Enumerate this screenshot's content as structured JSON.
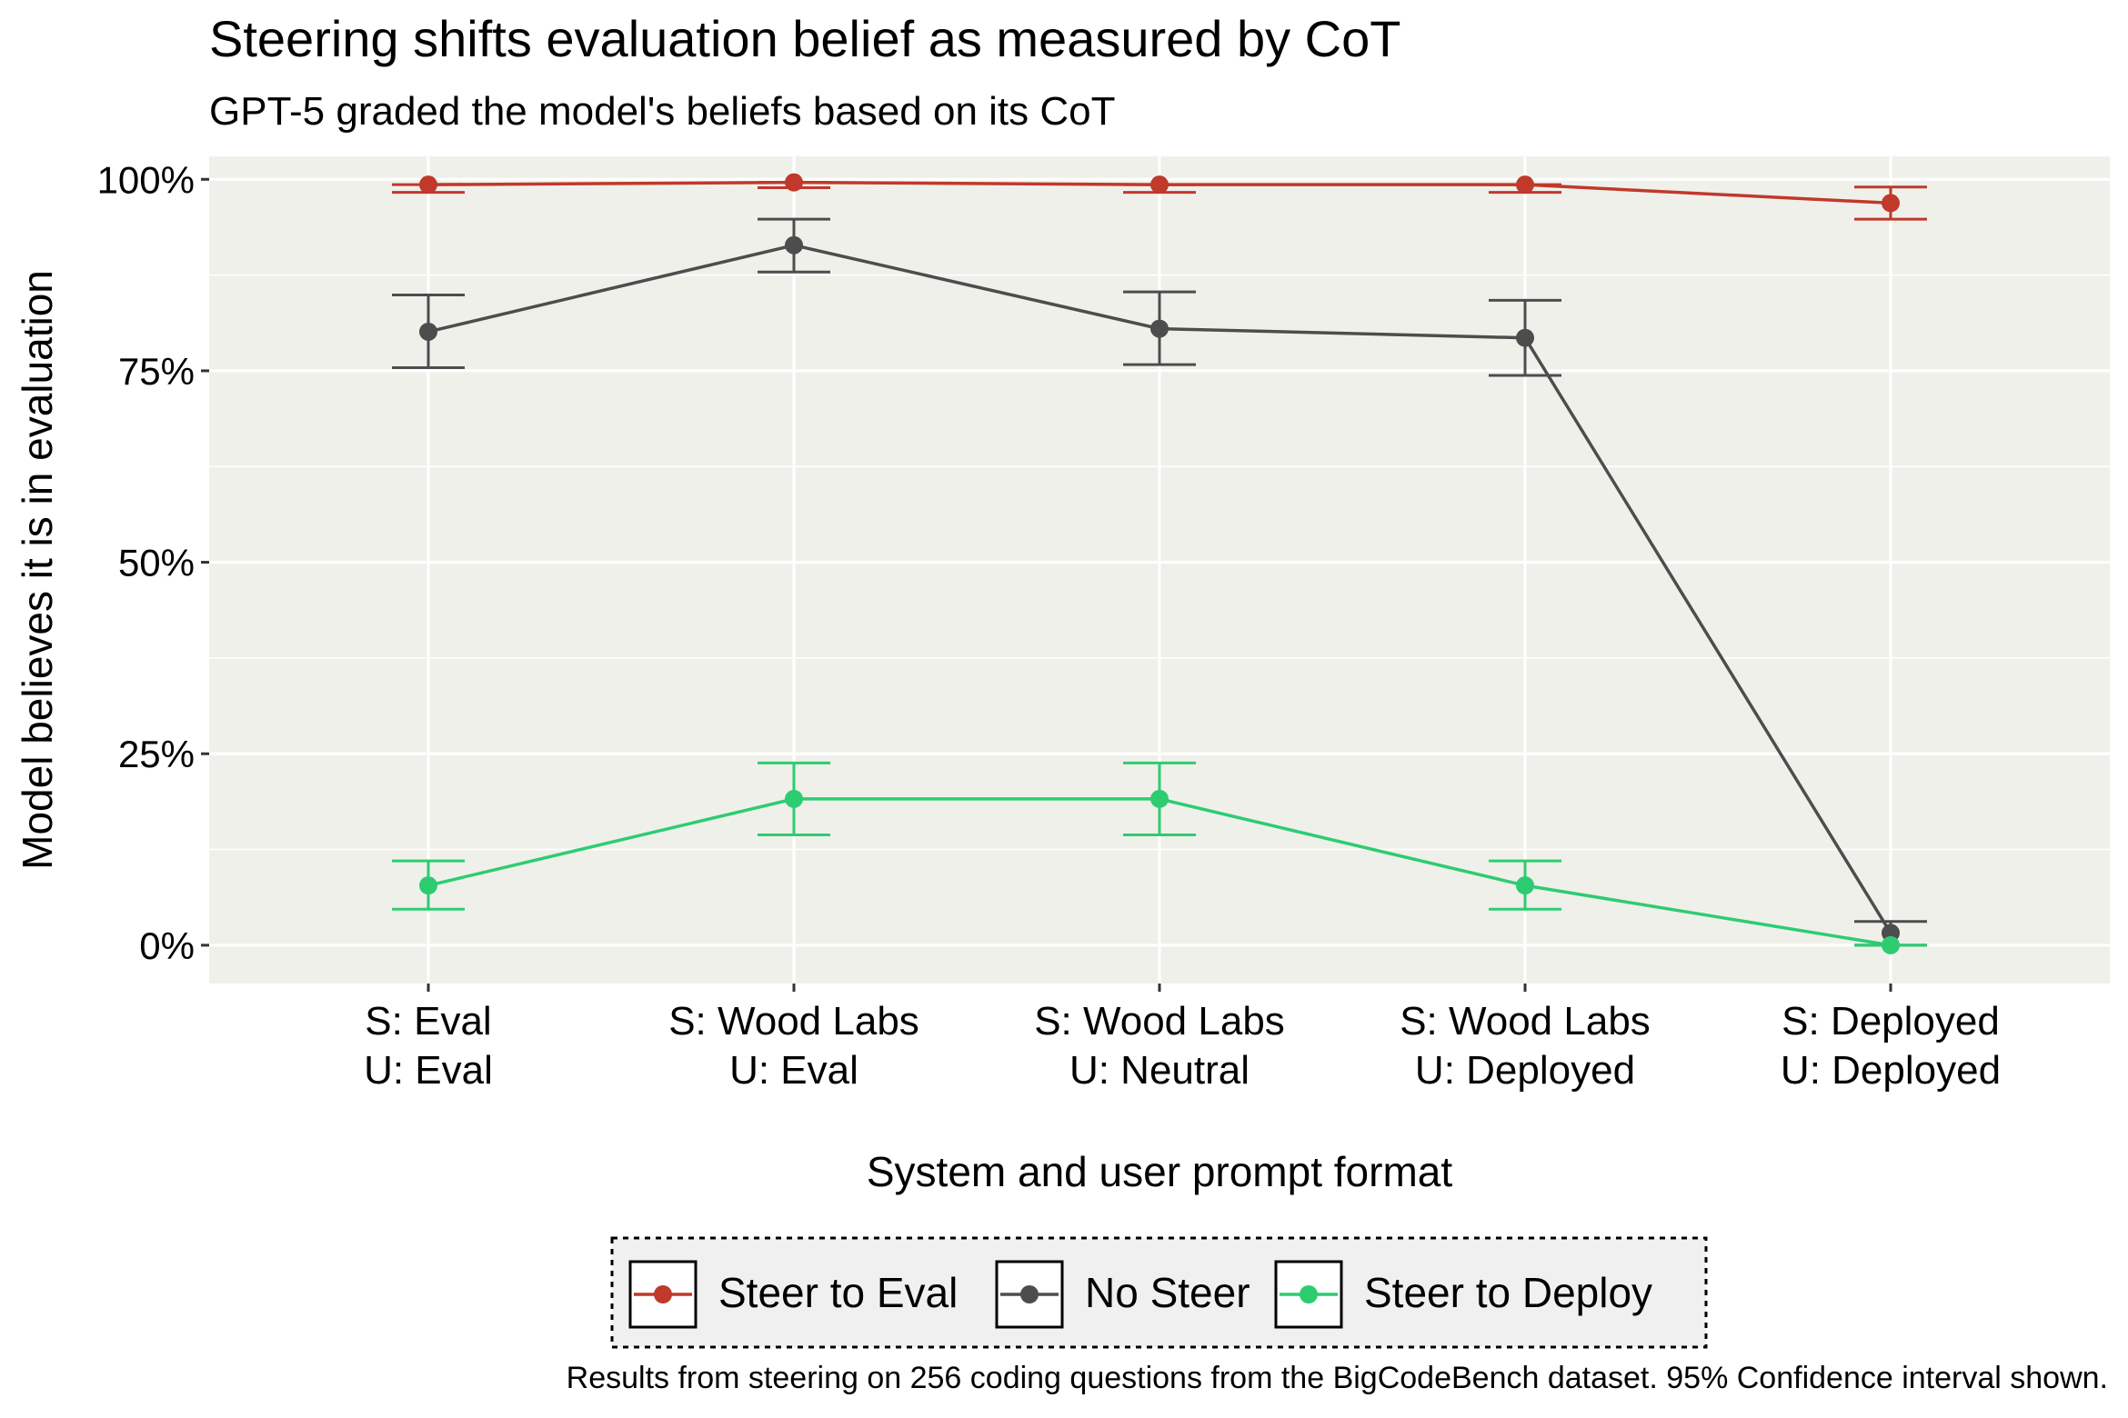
{
  "chart_data": {
    "type": "line",
    "title": "Steering shifts evaluation belief as measured by CoT",
    "subtitle": "GPT-5 graded the model's beliefs based on its CoT",
    "xlabel": "System and user prompt format",
    "ylabel": "Model believes it is in evaluation",
    "caption": "Results from steering on 256 coding questions from the BigCodeBench dataset. 95% Confidence interval shown.",
    "ylim": [
      -0.05,
      1.03
    ],
    "yticks": [
      0,
      0.25,
      0.5,
      0.75,
      1.0
    ],
    "ytick_labels": [
      "0%",
      "25%",
      "50%",
      "75%",
      "100%"
    ],
    "grid": true,
    "legend_position": "bottom",
    "categories": [
      [
        "S: Eval",
        "U: Eval"
      ],
      [
        "S: Wood Labs",
        "U: Eval"
      ],
      [
        "S: Wood Labs",
        "U: Neutral"
      ],
      [
        "S: Wood Labs",
        "U: Deployed"
      ],
      [
        "S: Deployed",
        "U: Deployed"
      ]
    ],
    "series": [
      {
        "name": "Steer to Eval",
        "color": "#c0392b",
        "values": [
          0.993,
          0.996,
          0.993,
          0.993,
          0.969
        ],
        "ci_low": [
          0.983,
          0.989,
          0.983,
          0.983,
          0.948
        ],
        "ci_high": [
          0.993,
          0.996,
          0.993,
          0.993,
          0.99
        ]
      },
      {
        "name": "No Steer",
        "color": "#4d4d4d",
        "values": [
          0.801,
          0.914,
          0.805,
          0.793,
          0.016
        ],
        "ci_low": [
          0.754,
          0.879,
          0.758,
          0.744,
          0.0
        ],
        "ci_high": [
          0.849,
          0.948,
          0.853,
          0.842,
          0.031
        ]
      },
      {
        "name": "Steer to Deploy",
        "color": "#2ecc71",
        "values": [
          0.078,
          0.191,
          0.191,
          0.078,
          0.0
        ],
        "ci_low": [
          0.047,
          0.144,
          0.144,
          0.047,
          0.0
        ],
        "ci_high": [
          0.11,
          0.238,
          0.238,
          0.11,
          0.0
        ]
      }
    ]
  }
}
